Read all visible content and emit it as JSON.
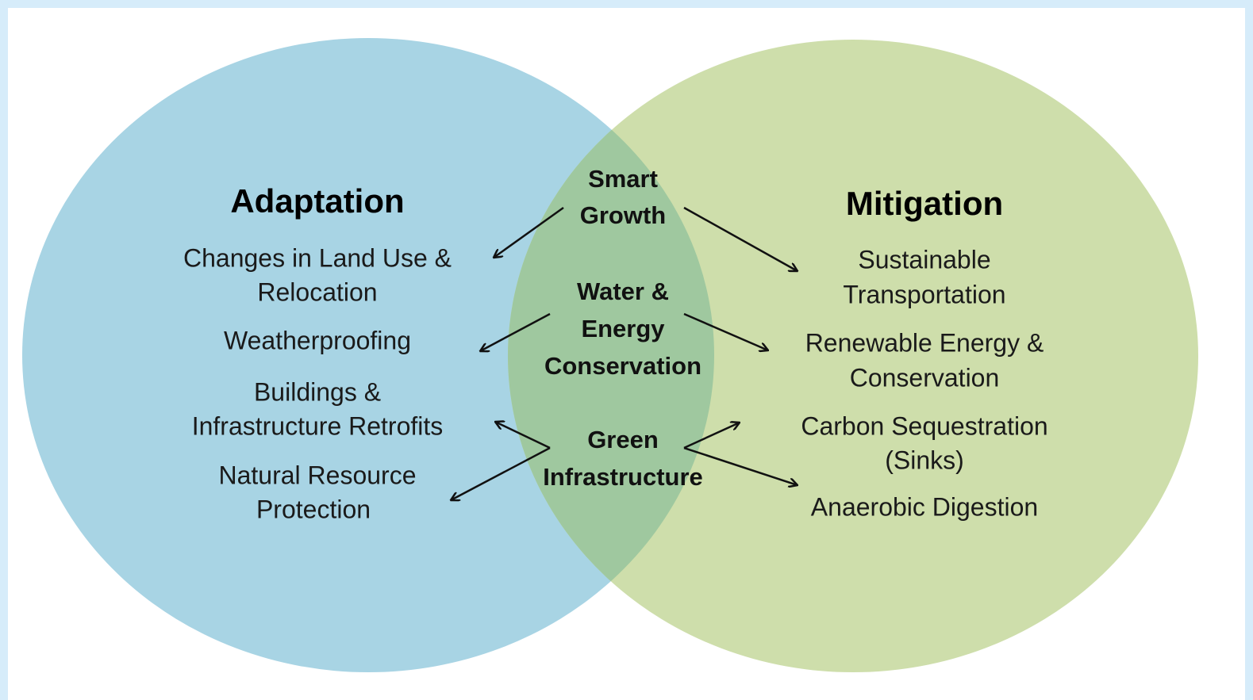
{
  "left": {
    "title": "Adaptation",
    "items": [
      [
        "Changes in Land Use &",
        "Relocation"
      ],
      [
        "Weatherproofing"
      ],
      [
        "Buildings &",
        "Infrastructure Retrofits"
      ],
      [
        "Natural Resource",
        "Protection"
      ]
    ]
  },
  "center": {
    "items": [
      [
        "Smart",
        "Growth"
      ],
      [
        "Water &",
        "Energy",
        "Conservation"
      ],
      [
        "Green",
        "Infrastructure"
      ]
    ]
  },
  "right": {
    "title": "Mitigation",
    "items": [
      [
        "Sustainable",
        "Transportation"
      ],
      [
        "Renewable Energy &",
        "Conservation"
      ],
      [
        "Carbon Sequestration",
        "(Sinks)"
      ],
      [
        "Anaerobic Digestion"
      ]
    ]
  }
}
